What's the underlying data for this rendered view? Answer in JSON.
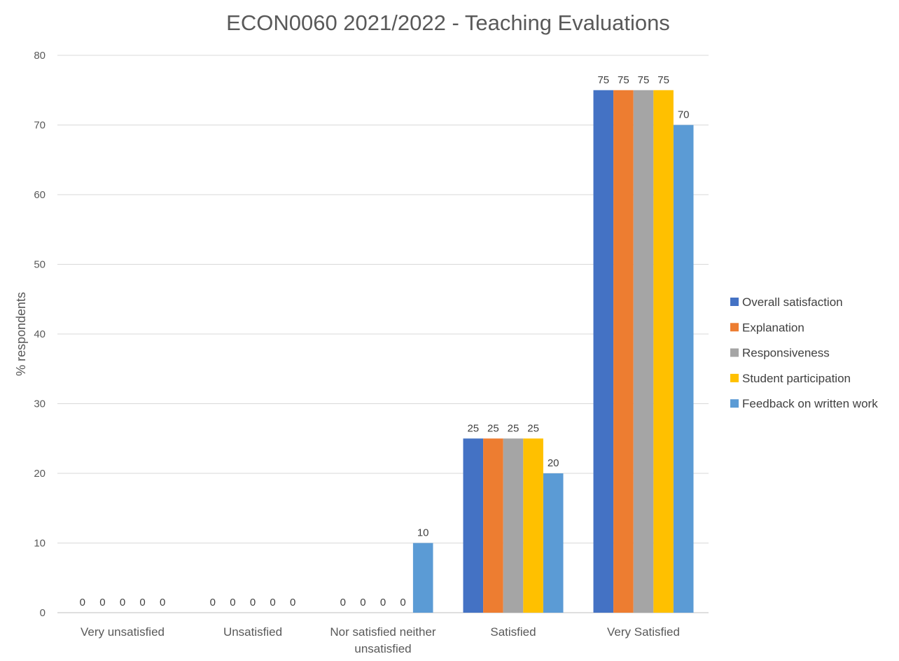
{
  "chart_data": {
    "type": "bar",
    "title": "ECON0060 2021/2022 - Teaching Evaluations",
    "ylabel": "% respondents",
    "xlabel": "",
    "ylim": [
      0,
      80
    ],
    "yticks": [
      0,
      10,
      20,
      30,
      40,
      50,
      60,
      70,
      80
    ],
    "grid": true,
    "legend_position": "right",
    "categories": [
      "Very unsatisfied",
      "Unsatisfied",
      "Nor satisfied neither unsatisfied",
      "Satisfied",
      "Very Satisfied"
    ],
    "series": [
      {
        "name": "Overall satisfaction",
        "color": "#4472C4",
        "values": [
          0,
          0,
          0,
          25,
          75
        ]
      },
      {
        "name": "Explanation",
        "color": "#ED7D31",
        "values": [
          0,
          0,
          0,
          25,
          75
        ]
      },
      {
        "name": "Responsiveness",
        "color": "#A5A5A5",
        "values": [
          0,
          0,
          0,
          25,
          75
        ]
      },
      {
        "name": "Student participation",
        "color": "#FFC000",
        "values": [
          0,
          0,
          0,
          25,
          75
        ]
      },
      {
        "name": "Feedback on written work",
        "color": "#5B9BD5",
        "values": [
          0,
          0,
          10,
          20,
          70
        ]
      }
    ]
  }
}
